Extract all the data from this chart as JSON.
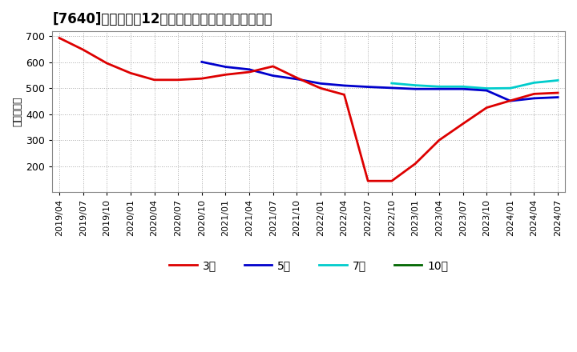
{
  "title": "[7640]　経常利益12か月移動合計の標準偏差の推移",
  "ylabel": "（百万円）",
  "ylim": [
    100,
    720
  ],
  "yticks": [
    200,
    300,
    400,
    500,
    600,
    700
  ],
  "background_color": "#ffffff",
  "grid_color": "#aaaaaa",
  "title_fontsize": 12,
  "axis_fontsize": 8,
  "legend_entries": [
    "3年",
    "5年",
    "7年",
    "10年"
  ],
  "line_colors": [
    "#dd0000",
    "#0000cc",
    "#00cccc",
    "#006600"
  ],
  "x_labels": [
    "2019/04",
    "2019/07",
    "2019/10",
    "2020/01",
    "2020/04",
    "2020/07",
    "2020/10",
    "2021/01",
    "2021/04",
    "2021/07",
    "2021/10",
    "2022/01",
    "2022/04",
    "2022/07",
    "2022/10",
    "2023/01",
    "2023/04",
    "2023/07",
    "2023/10",
    "2024/01",
    "2024/04",
    "2024/07"
  ],
  "series_3y": [
    693,
    648,
    596,
    558,
    532,
    532,
    537,
    552,
    562,
    584,
    540,
    500,
    475,
    143,
    143,
    210,
    300,
    363,
    425,
    452,
    478,
    482
  ],
  "series_5y": [
    null,
    null,
    null,
    null,
    null,
    null,
    601,
    582,
    572,
    548,
    535,
    518,
    510,
    505,
    501,
    497,
    497,
    497,
    491,
    451,
    461,
    465
  ],
  "series_7y": [
    null,
    null,
    null,
    null,
    null,
    null,
    null,
    null,
    null,
    null,
    null,
    null,
    null,
    null,
    519,
    511,
    506,
    506,
    499,
    500,
    521,
    530
  ],
  "series_10y": [
    null,
    null,
    null,
    null,
    null,
    null,
    null,
    null,
    null,
    null,
    null,
    null,
    null,
    null,
    null,
    null,
    null,
    null,
    null,
    null,
    null,
    null
  ]
}
